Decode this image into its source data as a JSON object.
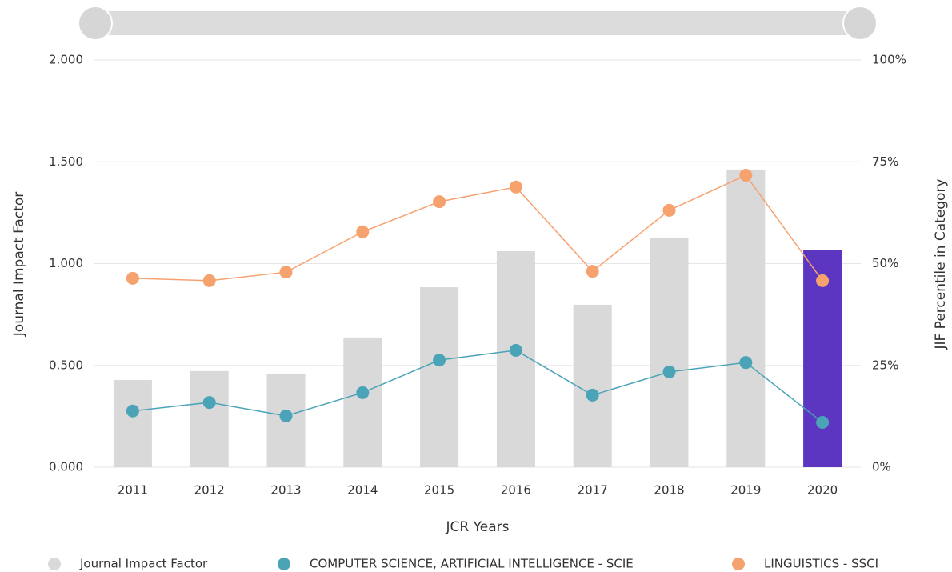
{
  "chart_data": {
    "type": "bar",
    "x_label": "JCR Years",
    "y_label": "Journal Impact Factor",
    "y2_label": "JIF Percentile in Category",
    "categories": [
      "2011",
      "2012",
      "2013",
      "2014",
      "2015",
      "2016",
      "2017",
      "2018",
      "2019",
      "2020"
    ],
    "series": [
      {
        "name": "Journal Impact Factor",
        "type": "bar",
        "color": "#d9d9d9",
        "bar_colors": [
          "#d9d9d9",
          "#d9d9d9",
          "#d9d9d9",
          "#d9d9d9",
          "#d9d9d9",
          "#d9d9d9",
          "#d9d9d9",
          "#d9d9d9",
          "#d9d9d9",
          "#5c35c0"
        ],
        "values": [
          0.428,
          0.472,
          0.46,
          0.637,
          0.884,
          1.061,
          0.798,
          1.128,
          1.462,
          1.065
        ]
      },
      {
        "name": "COMPUTER SCIENCE, ARTIFICIAL INTELLIGENCE - SCIE",
        "type": "line",
        "axis": "y2",
        "color": "#4ba3b8",
        "values": [
          13.8,
          15.9,
          12.6,
          18.3,
          26.3,
          28.7,
          17.7,
          23.4,
          25.7,
          11.0
        ]
      },
      {
        "name": "LINGUISTICS - SSCI",
        "type": "line",
        "axis": "y2",
        "color": "#f5a26f",
        "values": [
          46.4,
          45.8,
          47.9,
          57.8,
          65.2,
          68.8,
          48.1,
          63.1,
          71.7,
          45.8
        ]
      }
    ],
    "ylim": [
      0,
      2
    ],
    "yticks": [
      {
        "value": 0,
        "label": "0.000"
      },
      {
        "value": 0.5,
        "label": "0.500"
      },
      {
        "value": 1,
        "label": "1.000"
      },
      {
        "value": 1.5,
        "label": "1.500"
      },
      {
        "value": 2,
        "label": "2.000"
      }
    ],
    "y2lim": [
      0,
      100
    ],
    "y2ticks": [
      {
        "value": 0,
        "label": "0%"
      },
      {
        "value": 25,
        "label": "25%"
      },
      {
        "value": 50,
        "label": "50%"
      },
      {
        "value": 75,
        "label": "75%"
      },
      {
        "value": 100,
        "label": "100%"
      }
    ],
    "grid": true
  }
}
